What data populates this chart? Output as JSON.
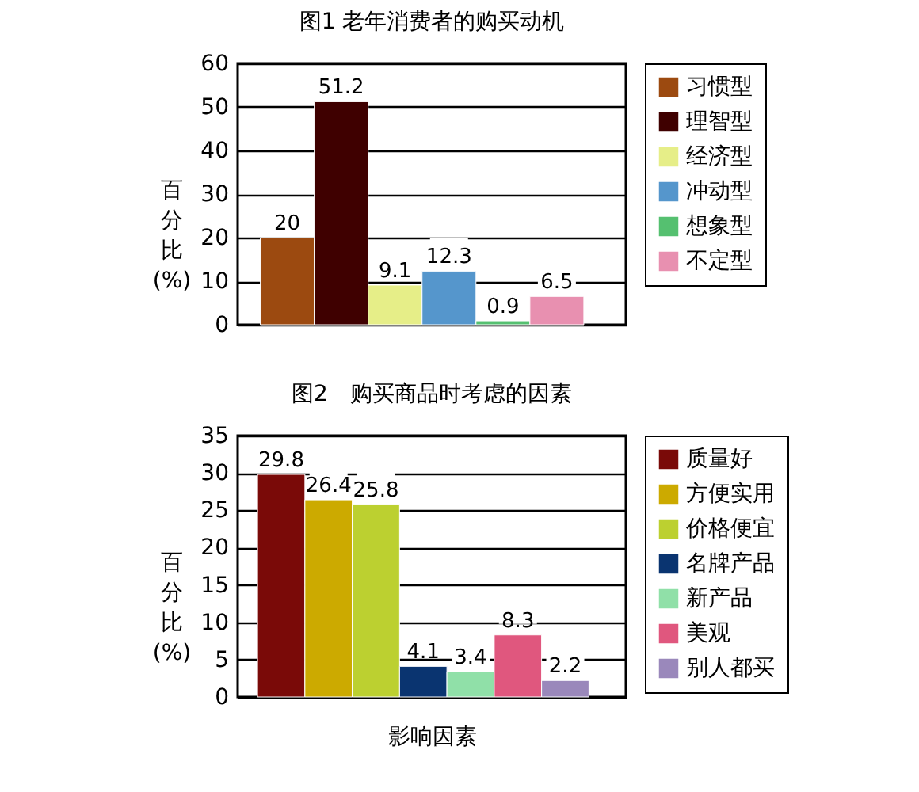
{
  "chart_data": [
    {
      "type": "bar",
      "title": "图1 老年消费者的购买动机",
      "ylabel": "百分比(%)",
      "categories": [
        null
      ],
      "ylim": [
        0,
        60
      ],
      "yticks": [
        0,
        10,
        20,
        30,
        40,
        50,
        60
      ],
      "grid": "y",
      "legend": "right",
      "data_labels": true,
      "series": [
        {
          "name": "习惯型",
          "color": "#9c4a10",
          "values": [
            20
          ]
        },
        {
          "name": "理智型",
          "color": "#3f0000",
          "values": [
            51.2
          ]
        },
        {
          "name": "经济型",
          "color": "#e6ee88",
          "values": [
            9.1
          ]
        },
        {
          "name": "冲动型",
          "color": "#5596cc",
          "values": [
            12.3
          ]
        },
        {
          "name": "想象型",
          "color": "#55c070",
          "values": [
            0.9
          ]
        },
        {
          "name": "不定型",
          "color": "#e890b0",
          "values": [
            6.5
          ]
        }
      ]
    },
    {
      "type": "bar",
      "title": "图2　购买商品时考虑的因素",
      "ylabel": "百分比(%)",
      "xlabel": "影响因素",
      "categories": [
        null
      ],
      "ylim": [
        0,
        35
      ],
      "yticks": [
        0,
        5,
        10,
        15,
        20,
        25,
        30,
        35
      ],
      "grid": "y",
      "legend": "right",
      "data_labels": true,
      "series": [
        {
          "name": "质量好",
          "color": "#7a0a08",
          "values": [
            29.8
          ]
        },
        {
          "name": "方便实用",
          "color": "#ccaa00",
          "values": [
            26.4
          ]
        },
        {
          "name": "价格便宜",
          "color": "#bcd030",
          "values": [
            25.8
          ]
        },
        {
          "name": "名牌产品",
          "color": "#0a3470",
          "values": [
            4.1
          ]
        },
        {
          "name": "新产品",
          "color": "#90e0a8",
          "values": [
            3.4
          ]
        },
        {
          "name": "美观",
          "color": "#e0577e",
          "values": [
            8.3
          ]
        },
        {
          "name": "别人都买",
          "color": "#9a88bb",
          "values": [
            2.2
          ]
        }
      ]
    }
  ]
}
